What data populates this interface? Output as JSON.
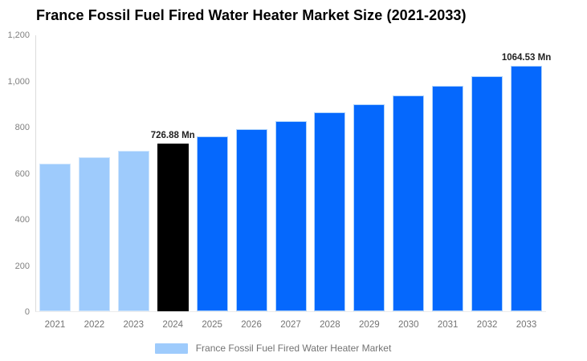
{
  "title": "France Fossil Fuel Fired Water Heater Market Size (2021-2033)",
  "chart_data": {
    "type": "bar",
    "title": "France Fossil Fuel Fired Water Heater Market Size (2021-2033)",
    "categories": [
      "2021",
      "2022",
      "2023",
      "2024",
      "2025",
      "2026",
      "2027",
      "2028",
      "2029",
      "2030",
      "2031",
      "2032",
      "2033"
    ],
    "values": [
      640.1,
      667.8,
      696.7,
      726.88,
      758.4,
      791.2,
      825.5,
      861.2,
      898.5,
      937.4,
      978.0,
      1020.3,
      1064.53
    ],
    "unit": "Mn",
    "bar_fills": [
      "#9ECBFC",
      "#9ECBFC",
      "#9ECBFC",
      "#000000",
      "#0568FD",
      "#0568FD",
      "#0568FD",
      "#0568FD",
      "#0568FD",
      "#0568FD",
      "#0568FD",
      "#0568FD",
      "#0568FD"
    ],
    "bar_strokes": [
      "#CFE5FD",
      "#CFE5FD",
      "#CFE5FD",
      "#000000",
      "#AFD3FB",
      "#AFD3FB",
      "#AFD3FB",
      "#AFD3FB",
      "#AFD3FB",
      "#AFD3FB",
      "#AFD3FB",
      "#AFD3FB",
      "#AFD3FB"
    ],
    "data_labels": [
      {
        "year": "2024",
        "text": "726.88 Mn"
      },
      {
        "year": "2033",
        "text": "1064.53 Mn"
      }
    ],
    "xlabel": "",
    "ylabel": "",
    "ylim": [
      0,
      1200
    ],
    "ytick_interval": 200,
    "ytick_labels": [
      "0",
      "200",
      "400",
      "600",
      "800",
      "1,000",
      "1,200"
    ],
    "grid": "off",
    "legend_position": "bottom-center",
    "legend": [
      {
        "label": "France Fossil Fuel Fired Water Heater Market",
        "color": "#9ECBFC"
      }
    ],
    "colors": {
      "historical_bar": "#9ECBFC",
      "base_year_bar": "#000000",
      "forecast_bar": "#0568FD",
      "axis_line": "#DCDCDC",
      "tick_text": "#808080",
      "category_text": "#737373",
      "title_text": "#000000",
      "data_label_text": "#222222"
    }
  }
}
